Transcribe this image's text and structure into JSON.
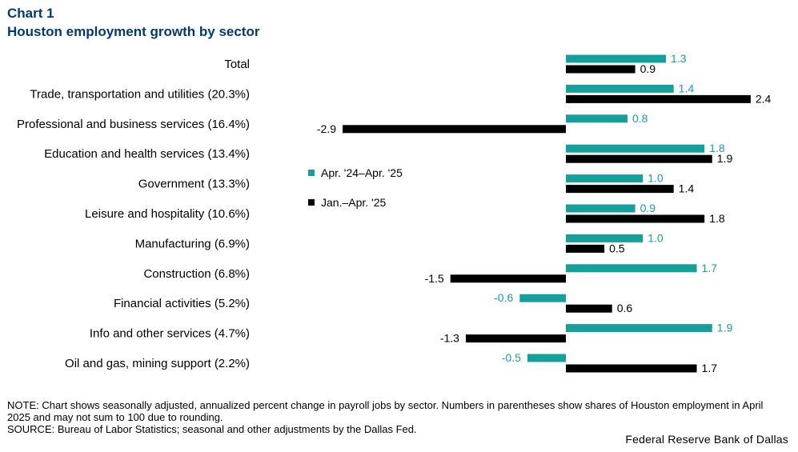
{
  "header": {
    "chart_number": "Chart 1",
    "title": "Houston employment growth by sector"
  },
  "colors": {
    "title": "#003b71",
    "series1": "#16a09c",
    "series2": "#000000"
  },
  "chart_data": {
    "type": "bar",
    "orientation": "horizontal",
    "title": "Houston employment growth by sector",
    "categories": [
      "Total",
      "Trade, transportation and utilities (20.3%)",
      "Professional and business services (16.4%)",
      "Education and health services (13.4%)",
      "Government (13.3%)",
      "Leisure and hospitality (10.6%)",
      "Manufacturing (6.9%)",
      "Construction (6.8%)",
      "Financial activities (5.2%)",
      "Info and other services (4.7%)",
      "Oil and gas, mining support (2.2%)"
    ],
    "series": [
      {
        "name": "Apr. '24–Apr. '25",
        "color": "#16a09c",
        "values": [
          1.3,
          1.4,
          0.8,
          1.8,
          1.0,
          0.9,
          1.0,
          1.7,
          -0.6,
          1.9,
          -0.5
        ],
        "labels": [
          "1.3",
          "1.4",
          "0.8",
          "1.8",
          "1.0",
          "0.9",
          "1.0",
          "1.7",
          "-0.6",
          "1.9",
          "-0.5"
        ]
      },
      {
        "name": "Jan.–Apr. '25",
        "color": "#000000",
        "values": [
          0.9,
          2.4,
          -2.9,
          1.9,
          1.4,
          1.8,
          0.5,
          -1.5,
          0.6,
          -1.3,
          1.7
        ],
        "labels": [
          "0.9",
          "2.4",
          "-2.9",
          "1.9",
          "1.4",
          "1.8",
          "0.5",
          "-1.5",
          "0.6",
          "-1.3",
          "1.7"
        ]
      }
    ],
    "xlim": [
      -2.9,
      2.4
    ],
    "axis_lines": false,
    "grid": false,
    "legend_position": "center-left"
  },
  "footer": {
    "note": "NOTE: Chart shows seasonally adjusted, annualized percent change in payroll jobs by sector. Numbers in parentheses show shares of Houston employment in April 2025 and may not sum to 100 due to rounding.",
    "source": "SOURCE: Bureau of Labor Statistics; seasonal and other adjustments by the Dallas Fed.",
    "credit": "Federal Reserve Bank of Dallas"
  }
}
